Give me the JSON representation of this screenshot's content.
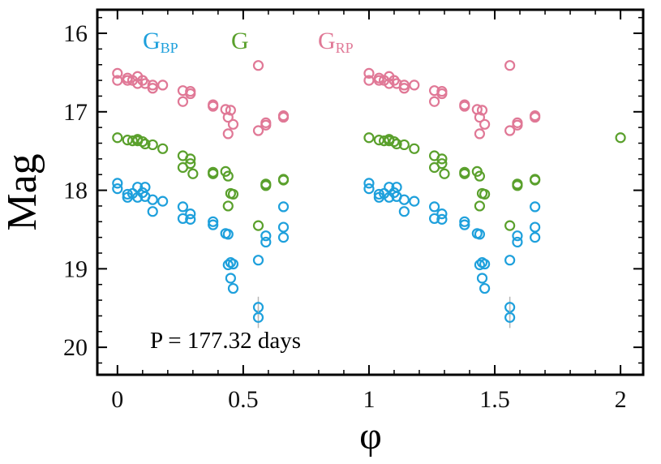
{
  "chart_data": {
    "type": "scatter",
    "title": "",
    "xlabel": "φ",
    "ylabel": "Mag",
    "xlim": [
      -0.08,
      2.09
    ],
    "ylim": [
      20.35,
      15.7
    ],
    "y_inverted": true,
    "grid": false,
    "xticks": [
      0,
      0.5,
      1,
      1.5,
      2
    ],
    "xtick_labels": [
      "0",
      "0.5",
      "1",
      "1.5",
      "2"
    ],
    "yticks": [
      16,
      17,
      18,
      19,
      20
    ],
    "ytick_labels": [
      "16",
      "17",
      "18",
      "19",
      "20"
    ],
    "annotation": "P = 177.32 days",
    "legend": [
      {
        "main": "G",
        "sub": "BP",
        "color": "#1ea0dc"
      },
      {
        "main": "G",
        "sub": "",
        "color": "#5aa02c"
      },
      {
        "main": "G",
        "sub": "RP",
        "color": "#e07896"
      }
    ],
    "series": [
      {
        "name": "GBP",
        "color": "#1ea0dc",
        "x": [
          0.0,
          0.0,
          0.04,
          0.04,
          0.06,
          0.08,
          0.08,
          0.1,
          0.11,
          0.11,
          0.14,
          0.14,
          0.18,
          0.26,
          0.26,
          0.29,
          0.29,
          0.38,
          0.38,
          0.43,
          0.44,
          0.44,
          0.45,
          0.45,
          0.46,
          0.46,
          0.56,
          0.56,
          0.56,
          0.59,
          0.59,
          0.66,
          0.66,
          0.66,
          1.0,
          1.0,
          1.04,
          1.04,
          1.06,
          1.08,
          1.08,
          1.1,
          1.11,
          1.11,
          1.14,
          1.14,
          1.18,
          1.26,
          1.26,
          1.29,
          1.29,
          1.38,
          1.38,
          1.43,
          1.44,
          1.44,
          1.45,
          1.45,
          1.46,
          1.46,
          1.56,
          1.56,
          1.56,
          1.59,
          1.59,
          1.66,
          1.66,
          1.66
        ],
        "y": [
          17.91,
          17.98,
          18.05,
          18.09,
          18.04,
          17.96,
          18.09,
          18.03,
          17.96,
          18.08,
          18.12,
          18.27,
          18.14,
          18.21,
          18.36,
          18.3,
          18.37,
          18.4,
          18.44,
          18.55,
          18.56,
          18.95,
          19.12,
          18.92,
          19.25,
          18.94,
          18.89,
          19.49,
          19.62,
          18.58,
          18.66,
          18.21,
          18.47,
          18.6,
          17.91,
          17.98,
          18.05,
          18.09,
          18.04,
          17.96,
          18.09,
          18.03,
          17.96,
          18.08,
          18.12,
          18.27,
          18.14,
          18.21,
          18.36,
          18.3,
          18.37,
          18.4,
          18.44,
          18.55,
          18.56,
          18.95,
          19.12,
          18.92,
          19.25,
          18.94,
          18.89,
          19.49,
          19.62,
          18.58,
          18.66,
          18.21,
          18.47,
          18.6
        ]
      },
      {
        "name": "G",
        "color": "#5aa02c",
        "x": [
          0.0,
          0.04,
          0.06,
          0.08,
          0.08,
          0.1,
          0.11,
          0.14,
          0.18,
          0.26,
          0.26,
          0.29,
          0.29,
          0.3,
          0.38,
          0.38,
          0.43,
          0.44,
          0.44,
          0.45,
          0.46,
          0.56,
          0.59,
          0.59,
          0.66,
          0.66,
          1.0,
          1.04,
          1.06,
          1.08,
          1.08,
          1.1,
          1.11,
          1.14,
          1.18,
          1.26,
          1.26,
          1.29,
          1.29,
          1.3,
          1.38,
          1.38,
          1.43,
          1.44,
          1.44,
          1.45,
          1.46,
          1.56,
          1.59,
          1.59,
          1.66,
          1.66,
          2.0
        ],
        "y": [
          17.33,
          17.36,
          17.37,
          17.35,
          17.37,
          17.38,
          17.41,
          17.42,
          17.47,
          17.56,
          17.71,
          17.6,
          17.66,
          17.79,
          17.77,
          17.79,
          17.76,
          17.82,
          18.2,
          18.04,
          18.05,
          18.45,
          17.92,
          17.94,
          17.86,
          17.87,
          17.33,
          17.36,
          17.37,
          17.35,
          17.37,
          17.38,
          17.41,
          17.42,
          17.47,
          17.56,
          17.71,
          17.6,
          17.66,
          17.79,
          17.77,
          17.79,
          17.76,
          17.82,
          18.2,
          18.04,
          18.05,
          18.45,
          17.92,
          17.94,
          17.86,
          17.87,
          17.33
        ]
      },
      {
        "name": "GRP",
        "color": "#e07896",
        "x": [
          0.0,
          0.0,
          0.04,
          0.04,
          0.06,
          0.08,
          0.08,
          0.1,
          0.11,
          0.14,
          0.14,
          0.18,
          0.26,
          0.26,
          0.29,
          0.29,
          0.38,
          0.38,
          0.43,
          0.44,
          0.44,
          0.45,
          0.46,
          0.56,
          0.56,
          0.59,
          0.59,
          0.66,
          0.66,
          1.0,
          1.0,
          1.04,
          1.04,
          1.06,
          1.08,
          1.08,
          1.1,
          1.11,
          1.14,
          1.14,
          1.18,
          1.26,
          1.26,
          1.29,
          1.29,
          1.38,
          1.38,
          1.43,
          1.44,
          1.44,
          1.45,
          1.46,
          1.56,
          1.56,
          1.59,
          1.59,
          1.66,
          1.66
        ],
        "y": [
          16.51,
          16.6,
          16.57,
          16.6,
          16.6,
          16.55,
          16.64,
          16.6,
          16.64,
          16.66,
          16.7,
          16.66,
          16.73,
          16.87,
          16.74,
          16.77,
          16.91,
          16.93,
          16.97,
          17.07,
          17.28,
          16.98,
          17.16,
          16.41,
          17.24,
          17.14,
          17.17,
          17.05,
          17.07,
          16.51,
          16.6,
          16.57,
          16.6,
          16.6,
          16.55,
          16.64,
          16.6,
          16.64,
          16.66,
          16.7,
          16.66,
          16.73,
          16.87,
          16.74,
          16.77,
          16.91,
          16.93,
          16.97,
          17.07,
          17.28,
          16.98,
          17.16,
          16.41,
          17.24,
          17.14,
          17.17,
          17.05,
          17.07
        ]
      }
    ]
  }
}
